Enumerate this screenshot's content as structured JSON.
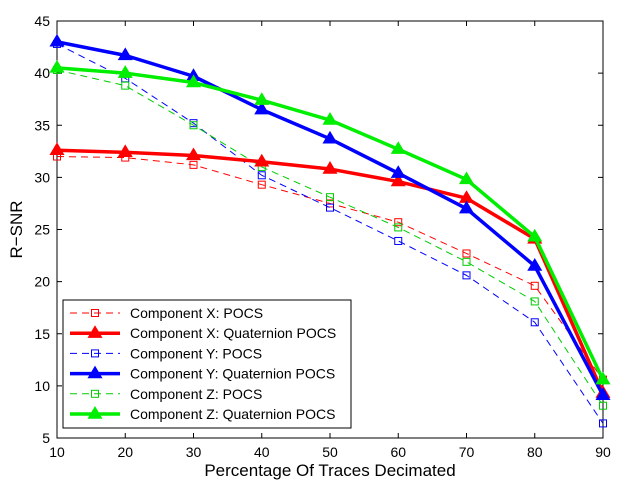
{
  "chart_data": {
    "type": "line",
    "title": "",
    "xlabel": "Percentage Of Traces Decimated",
    "ylabel": "R−SNR",
    "xlim": [
      10,
      90
    ],
    "ylim": [
      5,
      45
    ],
    "xticks": [
      10,
      20,
      30,
      40,
      50,
      60,
      70,
      80,
      90
    ],
    "yticks": [
      5,
      10,
      15,
      20,
      25,
      30,
      35,
      40,
      45
    ],
    "grid": false,
    "legend_position": "bottom-left",
    "x": [
      10,
      20,
      30,
      40,
      50,
      60,
      70,
      80,
      90
    ],
    "series": [
      {
        "name": "Component X: POCS",
        "color": "#ff0000",
        "style": "dashed",
        "marker": "square",
        "values": [
          32.0,
          31.9,
          31.2,
          29.3,
          27.5,
          25.7,
          22.7,
          19.6,
          10.6
        ]
      },
      {
        "name": "Component X: Quaternion POCS",
        "color": "#ff0000",
        "style": "solid",
        "marker": "triangle",
        "values": [
          32.6,
          32.4,
          32.1,
          31.5,
          30.8,
          29.6,
          28.0,
          24.1,
          9.3
        ]
      },
      {
        "name": "Component Y: POCS",
        "color": "#0000ff",
        "style": "dashed",
        "marker": "square",
        "values": [
          42.8,
          39.5,
          35.2,
          30.2,
          27.1,
          23.9,
          20.6,
          16.1,
          6.4
        ]
      },
      {
        "name": "Component Y: Quaternion POCS",
        "color": "#0000ff",
        "style": "solid",
        "marker": "triangle",
        "values": [
          43.0,
          41.7,
          39.7,
          36.5,
          33.7,
          30.4,
          27.0,
          21.5,
          9.1
        ]
      },
      {
        "name": "Component Z: POCS",
        "color": "#00cc00",
        "style": "dashed",
        "marker": "square",
        "values": [
          40.3,
          38.8,
          35.0,
          31.0,
          28.1,
          25.2,
          21.9,
          18.1,
          8.1
        ]
      },
      {
        "name": "Component Z: Quaternion POCS",
        "color": "#00ee00",
        "style": "solid",
        "marker": "triangle",
        "values": [
          40.5,
          40.0,
          39.1,
          37.4,
          35.5,
          32.7,
          29.8,
          24.3,
          10.6
        ]
      }
    ]
  }
}
